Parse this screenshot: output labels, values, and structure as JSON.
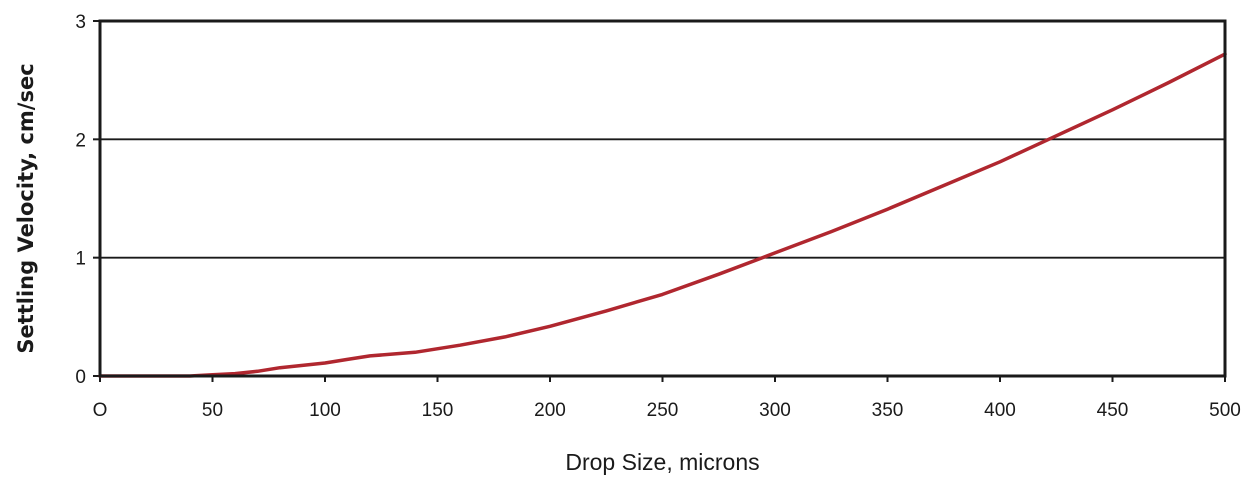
{
  "chart_data": {
    "type": "line",
    "title": "",
    "xlabel": "Drop Size, microns",
    "ylabel": "Settling Velocity, cm/sec",
    "xlim": [
      0,
      500
    ],
    "ylim": [
      0,
      3
    ],
    "x_ticks": [
      0,
      50,
      100,
      150,
      200,
      250,
      300,
      350,
      400,
      450,
      500
    ],
    "x_tick_labels": [
      "O",
      "50",
      "100",
      "150",
      "200",
      "250",
      "300",
      "350",
      "400",
      "450",
      "500"
    ],
    "y_ticks": [
      0,
      1,
      2,
      3
    ],
    "y_tick_labels": [
      "0",
      "1",
      "2",
      "3"
    ],
    "grid": "horizontal",
    "legend": "none",
    "line_color": "#b0272f",
    "series": [
      {
        "x": [
          0,
          20,
          40,
          50,
          60,
          70,
          80,
          90,
          100,
          110,
          120,
          140,
          160,
          180,
          200,
          225,
          250,
          275,
          300,
          325,
          350,
          375,
          400,
          425,
          450,
          475,
          500
        ],
        "values": [
          0,
          0,
          0,
          0.01,
          0.02,
          0.04,
          0.07,
          0.09,
          0.11,
          0.14,
          0.17,
          0.2,
          0.26,
          0.33,
          0.42,
          0.55,
          0.69,
          0.86,
          1.04,
          1.22,
          1.41,
          1.61,
          1.81,
          2.03,
          2.25,
          2.48,
          2.72
        ]
      }
    ]
  }
}
